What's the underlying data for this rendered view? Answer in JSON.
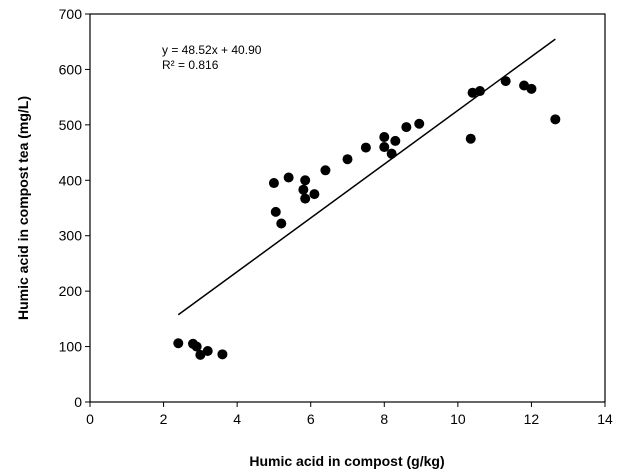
{
  "chart_data": {
    "type": "scatter",
    "title": "",
    "xlabel": "Humic acid in compost (g/kg)",
    "ylabel": "Humic acid in compost tea (mg/L)",
    "xlim": [
      0,
      14
    ],
    "ylim": [
      0,
      700
    ],
    "x_ticks": [
      "0",
      "2",
      "4",
      "6",
      "8",
      "10",
      "12",
      "14"
    ],
    "y_ticks": [
      "0",
      "100",
      "200",
      "300",
      "400",
      "500",
      "600",
      "700"
    ],
    "grid": false,
    "legend": "none",
    "marker_color": "#000000",
    "points": [
      {
        "x": 2.4,
        "y": 106
      },
      {
        "x": 2.8,
        "y": 105
      },
      {
        "x": 2.9,
        "y": 100
      },
      {
        "x": 3.0,
        "y": 85
      },
      {
        "x": 3.2,
        "y": 92
      },
      {
        "x": 3.6,
        "y": 86
      },
      {
        "x": 5.0,
        "y": 395
      },
      {
        "x": 5.05,
        "y": 343
      },
      {
        "x": 5.2,
        "y": 322
      },
      {
        "x": 5.4,
        "y": 405
      },
      {
        "x": 5.8,
        "y": 383
      },
      {
        "x": 5.85,
        "y": 400
      },
      {
        "x": 5.85,
        "y": 367
      },
      {
        "x": 6.1,
        "y": 375
      },
      {
        "x": 6.4,
        "y": 418
      },
      {
        "x": 7.0,
        "y": 438
      },
      {
        "x": 7.5,
        "y": 459
      },
      {
        "x": 8.0,
        "y": 478
      },
      {
        "x": 8.0,
        "y": 460
      },
      {
        "x": 8.2,
        "y": 448
      },
      {
        "x": 8.3,
        "y": 471
      },
      {
        "x": 8.6,
        "y": 496
      },
      {
        "x": 8.95,
        "y": 502
      },
      {
        "x": 10.35,
        "y": 475
      },
      {
        "x": 10.4,
        "y": 558
      },
      {
        "x": 10.6,
        "y": 561
      },
      {
        "x": 11.3,
        "y": 579
      },
      {
        "x": 11.8,
        "y": 571
      },
      {
        "x": 12.0,
        "y": 565
      },
      {
        "x": 12.65,
        "y": 510
      }
    ],
    "trendline": {
      "slope": 48.52,
      "intercept": 40.9,
      "x_start": 2.4,
      "x_end": 12.65
    },
    "annotations": [
      "y = 48.52x + 40.90",
      "R² = 0.816"
    ]
  }
}
